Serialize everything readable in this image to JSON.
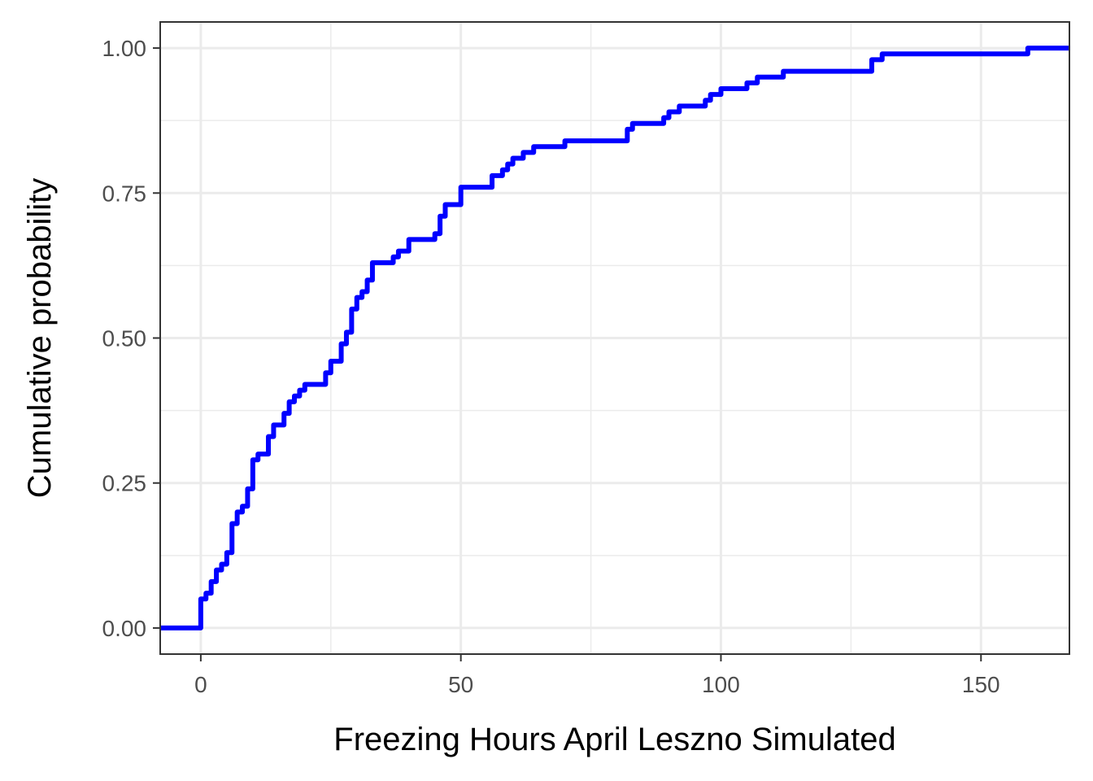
{
  "chart_data": {
    "type": "line",
    "step": true,
    "title": "",
    "xlabel": "Freezing Hours April Leszno Simulated",
    "ylabel": "Cumulative probability",
    "xlim": [
      -7.8,
      167
    ],
    "ylim": [
      -0.045,
      1.045
    ],
    "x_ticks": [
      0,
      50,
      100,
      150
    ],
    "x_tick_labels": [
      "0",
      "50",
      "100",
      "150"
    ],
    "x_minor_ticks": [
      25,
      75,
      125
    ],
    "y_ticks": [
      0,
      0.25,
      0.5,
      0.75,
      1.0
    ],
    "y_tick_labels": [
      "0.00",
      "0.25",
      "0.50",
      "0.75",
      "1.00"
    ],
    "y_minor_ticks": [
      0.125,
      0.375,
      0.625,
      0.875
    ],
    "grid": true,
    "legend": "none",
    "series": [
      {
        "color": "#0000ff",
        "x": [
          -7.8,
          0,
          1,
          2,
          3,
          4,
          5,
          6,
          7,
          8,
          9,
          10,
          11,
          13,
          14,
          16,
          17,
          18,
          19,
          20,
          21,
          24,
          25,
          27,
          28,
          29,
          30,
          31,
          32,
          33,
          37,
          38,
          40,
          42,
          45,
          46,
          47,
          50,
          56,
          57,
          58,
          59,
          60,
          62,
          64,
          70,
          82,
          83,
          89,
          90,
          92,
          97,
          98,
          100,
          105,
          107,
          112,
          129,
          131,
          159,
          167
        ],
        "y": [
          0.0,
          0.05,
          0.06,
          0.08,
          0.1,
          0.11,
          0.13,
          0.18,
          0.2,
          0.21,
          0.24,
          0.29,
          0.3,
          0.33,
          0.35,
          0.37,
          0.39,
          0.4,
          0.41,
          0.42,
          0.42,
          0.44,
          0.46,
          0.49,
          0.51,
          0.55,
          0.57,
          0.58,
          0.6,
          0.63,
          0.64,
          0.65,
          0.67,
          0.67,
          0.68,
          0.71,
          0.73,
          0.76,
          0.78,
          0.78,
          0.79,
          0.8,
          0.81,
          0.82,
          0.83,
          0.84,
          0.86,
          0.87,
          0.88,
          0.89,
          0.9,
          0.91,
          0.92,
          0.93,
          0.94,
          0.95,
          0.96,
          0.98,
          0.99,
          1.0,
          1.0
        ]
      }
    ]
  },
  "colors": {
    "line": "#0000ff",
    "grid_major": "#ebebeb",
    "grid_minor": "#ebebeb",
    "panel_border": "#333333",
    "tick_text": "#4d4d4d",
    "axis_title": "#000000"
  }
}
